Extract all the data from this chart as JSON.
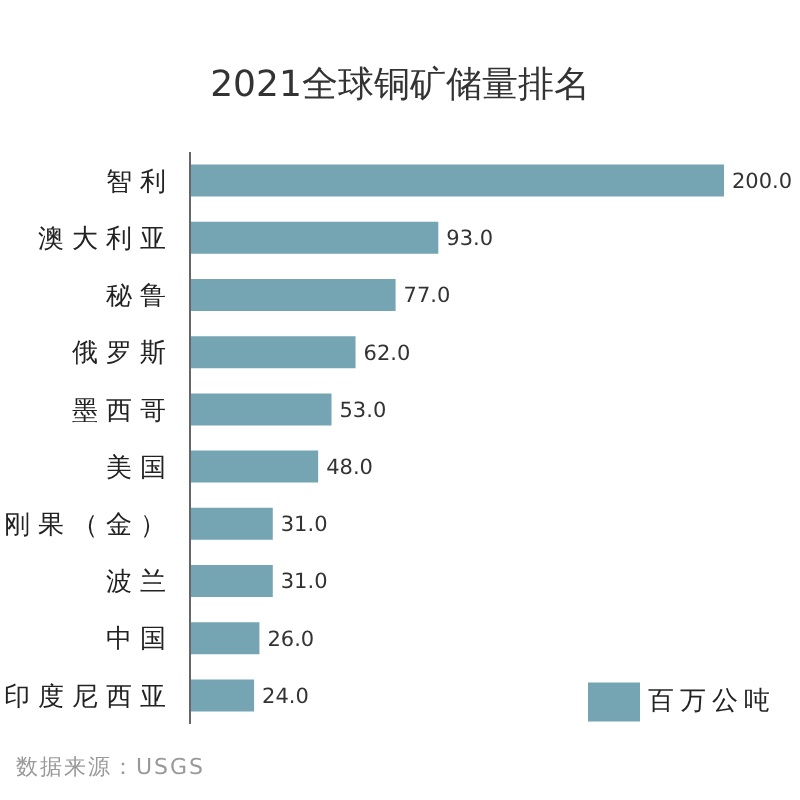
{
  "chart_data": {
    "type": "bar",
    "orientation": "horizontal",
    "title": "2021全球铜矿储量排名",
    "categories": [
      "智利",
      "澳大利亚",
      "秘鲁",
      "俄罗斯",
      "墨西哥",
      "美国",
      "刚果（金）",
      "波兰",
      "中国",
      "印度尼西亚"
    ],
    "series": [
      {
        "name": "百万公吨",
        "color": "#75a4b3",
        "values": [
          200,
          93,
          77,
          62,
          53,
          48,
          31,
          31,
          26,
          24
        ],
        "value_labels": [
          "200.0",
          "93.0",
          "77.0",
          "62.0",
          "53.0",
          "48.0",
          "31.0",
          "31.0",
          "26.0",
          "24.0"
        ]
      }
    ],
    "legend": "bottom right",
    "tick_labels": "y",
    "annotations": [
      "数据来源：USGS"
    ]
  }
}
